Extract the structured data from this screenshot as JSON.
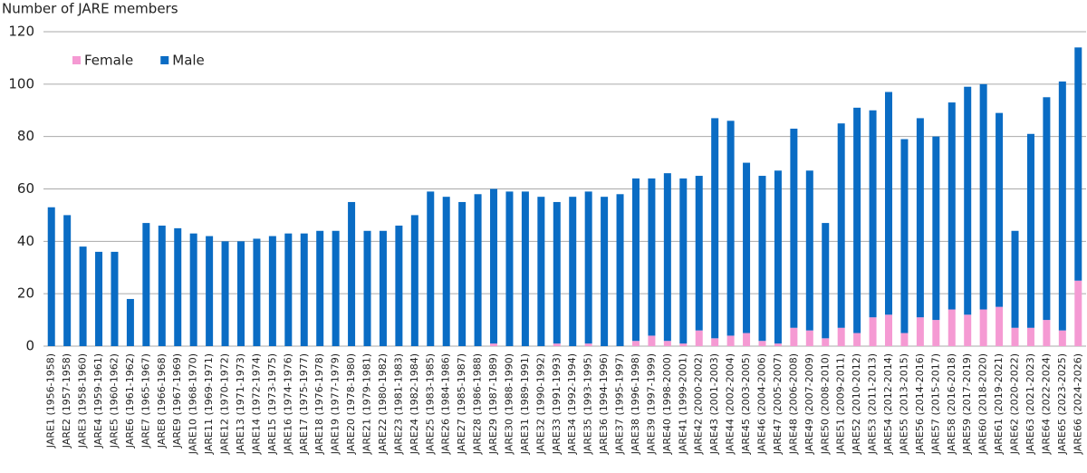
{
  "chart_data": {
    "type": "stacked_bar",
    "y_axis_label": "Number of JARE members",
    "categories": [
      "JARE1 (1956-1958)",
      "JARE2 (1957-1958)",
      "JARE3 (1958-1960)",
      "JARE4 (1959-1961)",
      "JARE5 (1960-1962)",
      "JARE6 (1961-1962)",
      "JARE7 (1965-1967)",
      "JARE8 (1966-1968)",
      "JARE9 (1967-1969)",
      "JARE10 (1968-1970)",
      "JARE11 (1969-1971)",
      "JARE12 (1970-1972)",
      "JARE13 (1971-1973)",
      "JARE14 (1972-1974)",
      "JARE15 (1973-1975)",
      "JARE16 (1974-1976)",
      "JARE17 (1975-1977)",
      "JARE18 (1976-1978)",
      "JARE19 (1977-1979)",
      "JARE20 (1978-1980)",
      "JARE21 (1979-1981)",
      "JARE22 (1980-1982)",
      "JARE23 (1981-1983)",
      "JARE24 (1982-1984)",
      "JARE25 (1983-1985)",
      "JARE26 (1984-1986)",
      "JARE27 (1985-1987)",
      "JARE28 (1986-1988)",
      "JARE29 (1987-1989)",
      "JARE30 (1988-1990)",
      "JARE31 (1989-1991)",
      "JARE32 (1990-1992)",
      "JARE33 (1991-1993)",
      "JARE34 (1992-1994)",
      "JARE35 (1993-1995)",
      "JARE36 (1994-1996)",
      "JARE37 (1995-1997)",
      "JARE38 (1996-1998)",
      "JARE39 (1997-1999)",
      "JARE40 (1998-2000)",
      "JARE41 (1999-2001)",
      "JARE42 (2000-2002)",
      "JARE43 (2001-2003)",
      "JARE44 (2002-2004)",
      "JARE45 (2003-2005)",
      "JARE46 (2004-2006)",
      "JARE47 (2005-2007)",
      "JARE48 (2006-2008)",
      "JARE49 (2007-2009)",
      "JARE50 (2008-2010)",
      "JARE51 (2009-2011)",
      "JARE52 (2010-2012)",
      "JARE53 (2011-2013)",
      "JARE54 (2012-2014)",
      "JARE55 (2013-2015)",
      "JARE56 (2014-2016)",
      "JARE57 (2015-2017)",
      "JARE58 (2016-2018)",
      "JARE59 (2017-2019)",
      "JARE60 (2018-2020)",
      "JARE61 (2019-2021)",
      "JARE62 (2020-2022)",
      "JARE63 (2021-2023)",
      "JARE64 (2022-2024)",
      "JARE65 (2023-2025)",
      "JARE66 (2024-2026)"
    ],
    "series": [
      {
        "name": "Female",
        "color": "#f59ad3",
        "values": [
          0,
          0,
          0,
          0,
          0,
          0,
          0,
          0,
          0,
          0,
          0,
          0,
          0,
          0,
          0,
          0,
          0,
          0,
          0,
          0,
          0,
          0,
          0,
          0,
          0,
          0,
          0,
          0,
          1,
          0,
          0,
          0,
          1,
          0,
          1,
          0,
          0,
          2,
          4,
          2,
          1,
          6,
          3,
          4,
          5,
          2,
          1,
          7,
          6,
          3,
          7,
          5,
          11,
          12,
          5,
          11,
          10,
          14,
          12,
          14,
          15,
          7,
          7,
          10,
          6,
          25
        ]
      },
      {
        "name": "Male",
        "color": "#0a6cc4",
        "values": [
          53,
          50,
          38,
          36,
          36,
          18,
          47,
          46,
          45,
          43,
          42,
          40,
          40,
          41,
          42,
          43,
          43,
          44,
          44,
          55,
          44,
          44,
          46,
          50,
          59,
          57,
          55,
          58,
          59,
          59,
          59,
          57,
          54,
          57,
          58,
          57,
          58,
          62,
          60,
          64,
          63,
          59,
          84,
          82,
          65,
          63,
          66,
          76,
          61,
          44,
          78,
          86,
          79,
          85,
          74,
          76,
          70,
          79,
          87,
          86,
          74,
          37,
          74,
          85,
          95,
          89
        ]
      }
    ],
    "ylim": [
      0,
      120
    ],
    "yticks": [
      0,
      20,
      40,
      60,
      80,
      100,
      120
    ],
    "grid": true,
    "legend": "top-left"
  }
}
